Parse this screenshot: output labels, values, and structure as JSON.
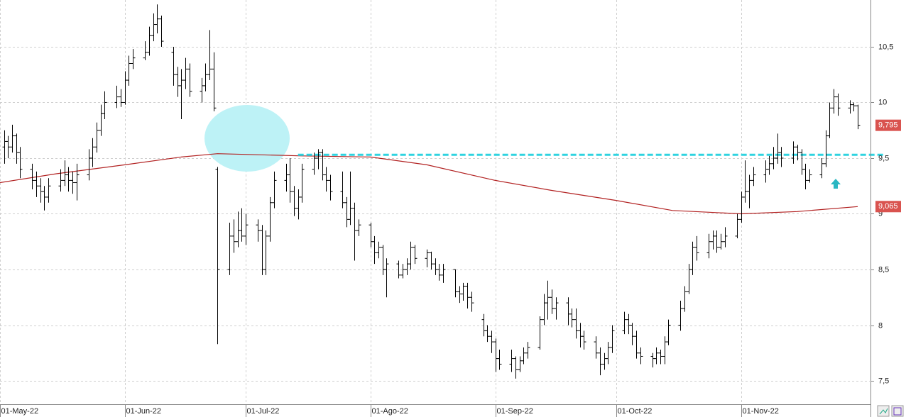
{
  "chart_data": {
    "type": "ohlc",
    "xlim": [
      "2022-05-01",
      "2022-12-03"
    ],
    "ylim": [
      7.29,
      10.92
    ],
    "yticks": [
      {
        "value": 10.5,
        "label": "10,5"
      },
      10,
      {
        "value": 9.5,
        "label": "9,5"
      },
      9,
      {
        "value": 8.5,
        "label": "8,5"
      },
      8,
      {
        "value": 7.5,
        "label": "7,5"
      }
    ],
    "xticks": [
      {
        "value": "2022-05-01",
        "label": "01-May-22"
      },
      {
        "value": "2022-06-01",
        "label": "01-Jun-22"
      },
      {
        "value": "2022-07-01",
        "label": "01-Jul-22"
      },
      {
        "value": "2022-08-01",
        "label": "01-Ago-22"
      },
      {
        "value": "2022-09-01",
        "label": "01-Sep-22"
      },
      {
        "value": "2022-10-01",
        "label": "01-Oct-22"
      },
      {
        "value": "2022-11-01",
        "label": "01-Nov-22"
      }
    ],
    "grid": true,
    "ohlc": {
      "color": "#000000",
      "last_label": "9,795",
      "x": [
        "2022-05-02",
        "2022-05-03",
        "2022-05-04",
        "2022-05-05",
        "2022-05-06",
        "2022-05-09",
        "2022-05-10",
        "2022-05-11",
        "2022-05-12",
        "2022-05-13",
        "2022-05-16",
        "2022-05-17",
        "2022-05-18",
        "2022-05-19",
        "2022-05-20",
        "2022-05-23",
        "2022-05-24",
        "2022-05-25",
        "2022-05-26",
        "2022-05-27",
        "2022-05-30",
        "2022-05-31",
        "2022-06-01",
        "2022-06-02",
        "2022-06-03",
        "2022-06-06",
        "2022-06-07",
        "2022-06-08",
        "2022-06-09",
        "2022-06-10",
        "2022-06-13",
        "2022-06-14",
        "2022-06-15",
        "2022-06-16",
        "2022-06-17",
        "2022-06-20",
        "2022-06-21",
        "2022-06-22",
        "2022-06-23",
        "2022-06-24",
        "2022-06-27",
        "2022-06-28",
        "2022-06-29",
        "2022-06-30",
        "2022-07-01",
        "2022-07-04",
        "2022-07-05",
        "2022-07-06",
        "2022-07-07",
        "2022-07-08",
        "2022-07-11",
        "2022-07-12",
        "2022-07-13",
        "2022-07-14",
        "2022-07-15",
        "2022-07-18",
        "2022-07-19",
        "2022-07-20",
        "2022-07-21",
        "2022-07-22",
        "2022-07-25",
        "2022-07-26",
        "2022-07-27",
        "2022-07-28",
        "2022-07-29",
        "2022-08-01",
        "2022-08-02",
        "2022-08-03",
        "2022-08-04",
        "2022-08-05",
        "2022-08-08",
        "2022-08-09",
        "2022-08-10",
        "2022-08-11",
        "2022-08-12",
        "2022-08-15",
        "2022-08-16",
        "2022-08-17",
        "2022-08-18",
        "2022-08-19",
        "2022-08-22",
        "2022-08-23",
        "2022-08-24",
        "2022-08-25",
        "2022-08-26",
        "2022-08-29",
        "2022-08-30",
        "2022-08-31",
        "2022-09-01",
        "2022-09-02",
        "2022-09-05",
        "2022-09-06",
        "2022-09-07",
        "2022-09-08",
        "2022-09-09",
        "2022-09-12",
        "2022-09-13",
        "2022-09-14",
        "2022-09-15",
        "2022-09-16",
        "2022-09-19",
        "2022-09-20",
        "2022-09-21",
        "2022-09-22",
        "2022-09-23",
        "2022-09-26",
        "2022-09-27",
        "2022-09-28",
        "2022-09-29",
        "2022-09-30",
        "2022-10-03",
        "2022-10-04",
        "2022-10-05",
        "2022-10-06",
        "2022-10-07",
        "2022-10-10",
        "2022-10-11",
        "2022-10-12",
        "2022-10-13",
        "2022-10-14",
        "2022-10-17",
        "2022-10-18",
        "2022-10-19",
        "2022-10-20",
        "2022-10-21",
        "2022-10-24",
        "2022-10-25",
        "2022-10-26",
        "2022-10-27",
        "2022-10-28",
        "2022-10-31",
        "2022-11-01",
        "2022-11-02",
        "2022-11-03",
        "2022-11-04",
        "2022-11-07",
        "2022-11-08",
        "2022-11-09",
        "2022-11-10",
        "2022-11-11",
        "2022-11-14",
        "2022-11-15",
        "2022-11-16",
        "2022-11-17",
        "2022-11-18",
        "2022-11-21",
        "2022-11-22",
        "2022-11-23",
        "2022-11-24",
        "2022-11-25",
        "2022-11-28",
        "2022-11-29",
        "2022-11-30"
      ],
      "values": [
        [
          9.6,
          9.75,
          9.45,
          9.65
        ],
        [
          9.65,
          9.7,
          9.5,
          9.6
        ],
        [
          9.6,
          9.8,
          9.55,
          9.7
        ],
        [
          9.7,
          9.72,
          9.45,
          9.55
        ],
        [
          9.55,
          9.6,
          9.32,
          9.4
        ],
        [
          9.4,
          9.45,
          9.22,
          9.3
        ],
        [
          9.3,
          9.38,
          9.15,
          9.25
        ],
        [
          9.25,
          9.32,
          9.1,
          9.2
        ],
        [
          9.2,
          9.25,
          9.03,
          9.15
        ],
        [
          9.15,
          9.32,
          9.1,
          9.25
        ],
        [
          9.25,
          9.4,
          9.2,
          9.3
        ],
        [
          9.3,
          9.48,
          9.25,
          9.35
        ],
        [
          9.35,
          9.42,
          9.2,
          9.3
        ],
        [
          9.3,
          9.38,
          9.18,
          9.28
        ],
        [
          9.28,
          9.45,
          9.12,
          9.35
        ],
        [
          9.35,
          9.58,
          9.3,
          9.5
        ],
        [
          9.5,
          9.68,
          9.42,
          9.6
        ],
        [
          9.6,
          9.82,
          9.55,
          9.75
        ],
        [
          9.75,
          9.98,
          9.7,
          9.9
        ],
        [
          9.9,
          10.1,
          9.85,
          10.0
        ],
        [
          10.0,
          10.15,
          9.95,
          10.05
        ],
        [
          10.05,
          10.12,
          9.96,
          10.0
        ],
        [
          10.0,
          10.28,
          9.98,
          10.2
        ],
        [
          10.2,
          10.42,
          10.15,
          10.35
        ],
        [
          10.35,
          10.48,
          10.3,
          10.4
        ],
        [
          10.4,
          10.55,
          10.38,
          10.45
        ],
        [
          10.45,
          10.68,
          10.42,
          10.6
        ],
        [
          10.6,
          10.8,
          10.55,
          10.7
        ],
        [
          10.7,
          10.88,
          10.62,
          10.75
        ],
        [
          10.75,
          10.78,
          10.5,
          10.55
        ],
        [
          10.45,
          10.5,
          10.15,
          10.25
        ],
        [
          10.25,
          10.32,
          10.05,
          10.15
        ],
        [
          10.15,
          10.3,
          9.85,
          10.2
        ],
        [
          10.2,
          10.4,
          10.12,
          10.3
        ],
        [
          10.3,
          10.35,
          10.05,
          10.1
        ],
        [
          10.1,
          10.22,
          10.0,
          10.15
        ],
        [
          10.15,
          10.35,
          10.1,
          10.25
        ],
        [
          10.25,
          10.65,
          10.2,
          10.3
        ],
        [
          10.3,
          10.45,
          9.92,
          9.95
        ],
        [
          9.4,
          9.42,
          7.83,
          8.5
        ],
        [
          8.5,
          8.92,
          8.45,
          8.8
        ],
        [
          8.8,
          8.95,
          8.65,
          8.75
        ],
        [
          8.75,
          9.02,
          8.7,
          8.85
        ],
        [
          8.85,
          9.05,
          8.75,
          8.8
        ],
        [
          8.8,
          9.0,
          8.72,
          8.9
        ],
        [
          8.9,
          8.95,
          8.75,
          8.85
        ],
        [
          8.85,
          8.9,
          8.45,
          8.5
        ],
        [
          8.5,
          8.85,
          8.45,
          8.8
        ],
        [
          8.8,
          9.15,
          8.75,
          9.1
        ],
        [
          9.1,
          9.38,
          9.05,
          9.3
        ],
        [
          9.3,
          9.45,
          9.2,
          9.35
        ],
        [
          9.35,
          9.5,
          9.1,
          9.2
        ],
        [
          9.2,
          9.25,
          8.98,
          9.05
        ],
        [
          9.05,
          9.22,
          8.95,
          9.15
        ],
        [
          9.15,
          9.45,
          9.1,
          9.4
        ],
        [
          9.4,
          9.55,
          9.35,
          9.5
        ],
        [
          9.5,
          9.58,
          9.4,
          9.55
        ],
        [
          9.55,
          9.58,
          9.3,
          9.35
        ],
        [
          9.35,
          9.42,
          9.2,
          9.3
        ],
        [
          9.3,
          9.35,
          9.12,
          9.2
        ],
        [
          9.2,
          9.38,
          9.05,
          9.1
        ],
        [
          9.1,
          9.15,
          8.88,
          8.95
        ],
        [
          8.95,
          9.38,
          8.9,
          9.05
        ],
        [
          9.05,
          9.1,
          8.58,
          8.85
        ],
        [
          8.85,
          8.95,
          8.8,
          8.9
        ],
        [
          8.9,
          8.92,
          8.7,
          8.75
        ],
        [
          8.75,
          8.8,
          8.55,
          8.65
        ],
        [
          8.65,
          8.75,
          8.6,
          8.7
        ],
        [
          8.7,
          8.72,
          8.45,
          8.5
        ],
        [
          8.5,
          8.6,
          8.25,
          8.55
        ],
        [
          8.55,
          8.58,
          8.42,
          8.45
        ],
        [
          8.45,
          8.55,
          8.42,
          8.5
        ],
        [
          8.5,
          8.6,
          8.45,
          8.55
        ],
        [
          8.55,
          8.75,
          8.5,
          8.7
        ],
        [
          8.7,
          8.72,
          8.55,
          8.6
        ],
        [
          8.6,
          8.68,
          8.52,
          8.65
        ],
        [
          8.65,
          8.66,
          8.5,
          8.55
        ],
        [
          8.55,
          8.6,
          8.45,
          8.5
        ],
        [
          8.5,
          8.55,
          8.4,
          8.45
        ],
        [
          8.45,
          8.55,
          8.38,
          8.5
        ],
        [
          8.5,
          8.5,
          8.25,
          8.3
        ],
        [
          8.3,
          8.35,
          8.2,
          8.28
        ],
        [
          8.28,
          8.38,
          8.22,
          8.35
        ],
        [
          8.35,
          8.38,
          8.15,
          8.25
        ],
        [
          8.25,
          8.3,
          8.12,
          8.2
        ],
        [
          8.05,
          8.1,
          7.9,
          7.95
        ],
        [
          7.95,
          8.0,
          7.85,
          7.9
        ],
        [
          7.9,
          7.95,
          7.75,
          7.85
        ],
        [
          7.85,
          7.88,
          7.58,
          7.7
        ],
        [
          7.7,
          7.78,
          7.6,
          7.65
        ],
        [
          7.65,
          7.78,
          7.58,
          7.7
        ],
        [
          7.7,
          7.72,
          7.52,
          7.6
        ],
        [
          7.6,
          7.72,
          7.58,
          7.68
        ],
        [
          7.68,
          7.8,
          7.65,
          7.75
        ],
        [
          7.75,
          7.85,
          7.7,
          7.8
        ],
        [
          7.8,
          8.08,
          7.78,
          8.05
        ],
        [
          8.05,
          8.28,
          8.0,
          8.2
        ],
        [
          8.2,
          8.4,
          8.05,
          8.25
        ],
        [
          8.25,
          8.32,
          8.1,
          8.15
        ],
        [
          8.15,
          8.25,
          8.05,
          8.2
        ],
        [
          8.2,
          8.25,
          8.0,
          8.1
        ],
        [
          8.1,
          8.15,
          7.98,
          8.05
        ],
        [
          8.05,
          8.15,
          7.88,
          7.95
        ],
        [
          7.95,
          8.02,
          7.8,
          7.9
        ],
        [
          7.9,
          7.95,
          7.78,
          7.85
        ],
        [
          7.85,
          7.9,
          7.7,
          7.75
        ],
        [
          7.75,
          7.8,
          7.55,
          7.65
        ],
        [
          7.65,
          7.75,
          7.6,
          7.7
        ],
        [
          7.7,
          7.85,
          7.65,
          7.8
        ],
        [
          7.8,
          8.0,
          7.75,
          7.95
        ],
        [
          7.95,
          8.12,
          7.92,
          8.05
        ],
        [
          8.05,
          8.1,
          7.92,
          8.0
        ],
        [
          8.0,
          8.02,
          7.82,
          7.9
        ],
        [
          7.9,
          7.95,
          7.7,
          7.75
        ],
        [
          7.75,
          7.8,
          7.65,
          7.72
        ],
        [
          7.72,
          7.75,
          7.62,
          7.7
        ],
        [
          7.7,
          7.8,
          7.65,
          7.75
        ],
        [
          7.75,
          7.78,
          7.65,
          7.72
        ],
        [
          7.72,
          7.9,
          7.65,
          7.85
        ],
        [
          7.85,
          8.05,
          7.82,
          8.0
        ],
        [
          8.0,
          8.22,
          7.95,
          8.15
        ],
        [
          8.15,
          8.35,
          8.12,
          8.3
        ],
        [
          8.3,
          8.55,
          8.28,
          8.5
        ],
        [
          8.5,
          8.75,
          8.45,
          8.7
        ],
        [
          8.7,
          8.8,
          8.58,
          8.65
        ],
        [
          8.65,
          8.82,
          8.6,
          8.75
        ],
        [
          8.75,
          8.85,
          8.68,
          8.8
        ],
        [
          8.8,
          8.85,
          8.65,
          8.7
        ],
        [
          8.7,
          8.82,
          8.68,
          8.75
        ],
        [
          8.75,
          8.88,
          8.7,
          8.8
        ],
        [
          8.8,
          9.0,
          8.78,
          8.95
        ],
        [
          8.95,
          9.2,
          8.92,
          9.15
        ],
        [
          9.15,
          9.48,
          9.1,
          9.2
        ],
        [
          9.2,
          9.35,
          9.05,
          9.3
        ],
        [
          9.3,
          9.42,
          9.25,
          9.35
        ],
        [
          9.35,
          9.48,
          9.28,
          9.4
        ],
        [
          9.4,
          9.52,
          9.35,
          9.45
        ],
        [
          9.45,
          9.6,
          9.4,
          9.5
        ],
        [
          9.5,
          9.72,
          9.45,
          9.55
        ],
        [
          9.55,
          9.6,
          9.42,
          9.5
        ],
        [
          9.5,
          9.65,
          9.45,
          9.6
        ],
        [
          9.6,
          9.62,
          9.48,
          9.55
        ],
        [
          9.55,
          9.58,
          9.35,
          9.4
        ],
        [
          9.4,
          9.45,
          9.22,
          9.3
        ],
        [
          9.3,
          9.4,
          9.28,
          9.35
        ],
        [
          9.35,
          9.5,
          9.32,
          9.45
        ],
        [
          9.45,
          9.75,
          9.42,
          9.7
        ],
        [
          9.7,
          10.0,
          9.68,
          9.95
        ],
        [
          9.95,
          10.12,
          9.9,
          10.05
        ],
        [
          10.05,
          10.08,
          9.88,
          9.95
        ],
        [
          9.95,
          10.02,
          9.9,
          9.98
        ],
        [
          9.98,
          10.0,
          9.92,
          9.97
        ],
        [
          9.97,
          9.98,
          9.76,
          9.795
        ]
      ]
    },
    "ma": {
      "color": "#b22222",
      "last_label": "9,065",
      "x": [
        "2022-05-01",
        "2022-05-15",
        "2022-06-01",
        "2022-06-15",
        "2022-06-24",
        "2022-07-15",
        "2022-08-01",
        "2022-08-15",
        "2022-09-01",
        "2022-09-15",
        "2022-10-01",
        "2022-10-15",
        "2022-11-01",
        "2022-11-15",
        "2022-11-30"
      ],
      "values": [
        9.28,
        9.36,
        9.44,
        9.51,
        9.54,
        9.52,
        9.51,
        9.44,
        9.3,
        9.21,
        9.12,
        9.03,
        9.0,
        9.02,
        9.065
      ]
    },
    "hline": {
      "value": 9.53,
      "from": "2022-07-14",
      "color": "#2fd3e0"
    }
  }
}
